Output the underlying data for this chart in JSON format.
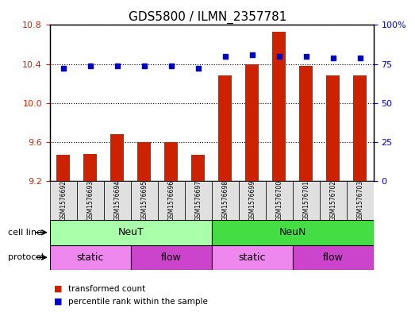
{
  "title": "GDS5800 / ILMN_2357781",
  "samples": [
    "GSM1576692",
    "GSM1576693",
    "GSM1576694",
    "GSM1576695",
    "GSM1576696",
    "GSM1576697",
    "GSM1576698",
    "GSM1576699",
    "GSM1576700",
    "GSM1576701",
    "GSM1576702",
    "GSM1576703"
  ],
  "bar_values": [
    9.47,
    9.48,
    9.68,
    9.6,
    9.6,
    9.47,
    10.28,
    10.4,
    10.73,
    10.38,
    10.28,
    10.28
  ],
  "dot_values": [
    72,
    74,
    74,
    74,
    74,
    72,
    80,
    81,
    80,
    80,
    79,
    79
  ],
  "ylim_left": [
    9.2,
    10.8
  ],
  "ylim_right": [
    0,
    100
  ],
  "yticks_left": [
    9.2,
    9.6,
    10.0,
    10.4,
    10.8
  ],
  "yticks_right": [
    0,
    25,
    50,
    75,
    100
  ],
  "ytick_labels_right": [
    "0",
    "25",
    "50",
    "75",
    "100%"
  ],
  "bar_color": "#CC2200",
  "dot_color": "#0000CC",
  "bar_bottom": 9.2,
  "cell_line_groups": [
    {
      "label": "NeuT",
      "start": 0,
      "end": 6,
      "color": "#AAFFAA"
    },
    {
      "label": "NeuN",
      "start": 6,
      "end": 12,
      "color": "#44DD44"
    }
  ],
  "protocol_groups": [
    {
      "label": "static",
      "start": 0,
      "end": 3,
      "color": "#EE88EE"
    },
    {
      "label": "flow",
      "start": 3,
      "end": 6,
      "color": "#CC44CC"
    },
    {
      "label": "static",
      "start": 6,
      "end": 9,
      "color": "#EE88EE"
    },
    {
      "label": "flow",
      "start": 9,
      "end": 12,
      "color": "#CC44CC"
    }
  ],
  "legend_items": [
    {
      "label": "transformed count",
      "color": "#CC2200"
    },
    {
      "label": "percentile rank within the sample",
      "color": "#0000CC"
    }
  ],
  "dotted_line_color": "#000000",
  "background_color": "#FFFFFF",
  "tick_color_left": "#CC2200",
  "tick_color_right": "#0000CC",
  "label_row1": "cell line",
  "label_row2": "protocol"
}
